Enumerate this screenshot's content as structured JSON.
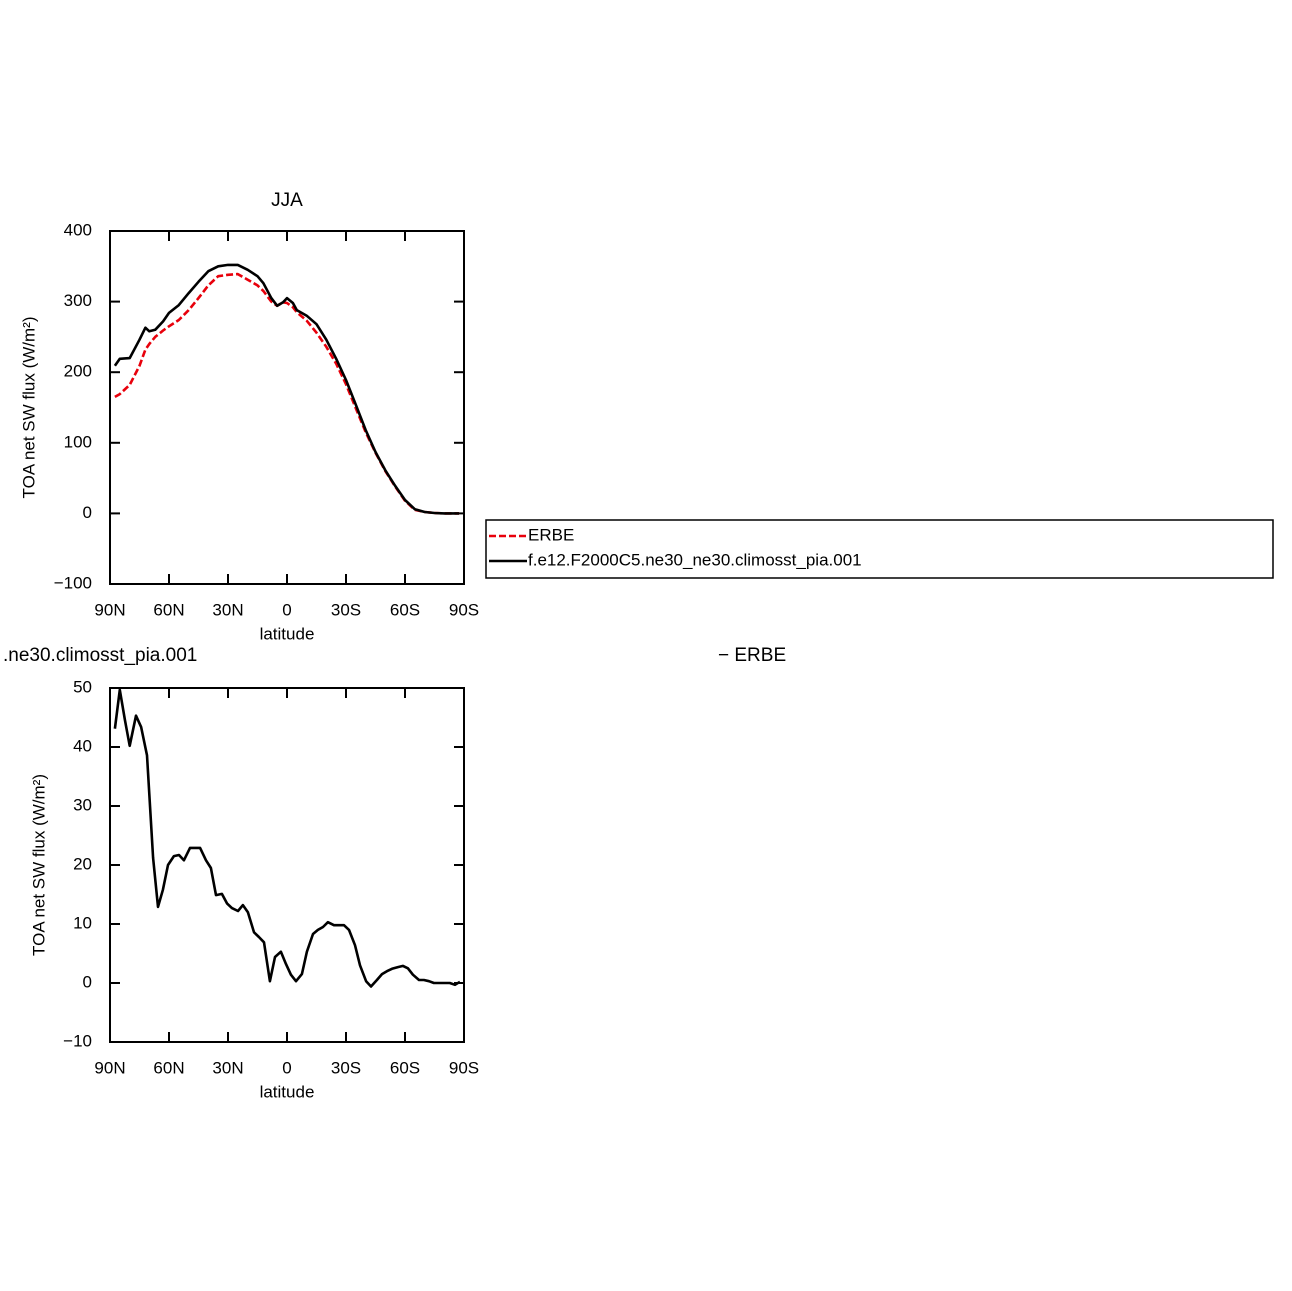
{
  "chart_data": [
    {
      "type": "line",
      "title": "JJA",
      "xlabel": "latitude",
      "ylabel": "TOA net SW flux (W/m²)",
      "x": [
        87.5,
        85,
        80,
        75,
        72,
        70,
        67,
        63,
        60,
        55,
        50,
        45,
        40,
        35,
        30,
        25,
        20,
        15,
        12,
        8,
        5,
        2,
        0,
        -3,
        -5,
        -10,
        -15,
        -20,
        -25,
        -30,
        -35,
        -40,
        -45,
        -50,
        -55,
        -60,
        -65,
        -70,
        -75,
        -80,
        -85,
        -87.5
      ],
      "series": [
        {
          "name": "ERBE",
          "color": "#e8000b",
          "dash": true,
          "values": [
            165,
            169,
            182,
            209,
            232,
            240,
            250,
            259,
            265,
            274,
            288,
            305,
            323,
            336,
            338,
            339,
            331,
            323,
            315,
            300,
            294,
            299,
            298,
            292,
            285,
            273,
            256,
            236,
            212,
            183,
            149,
            115,
            86,
            60,
            38,
            18,
            5,
            2,
            0.5,
            0,
            0,
            0
          ]
        },
        {
          "name": "f.e12.F2000C5.ne30_ne30.climosst_pia.001",
          "color": "#000000",
          "dash": false,
          "values": [
            209,
            219,
            220,
            246,
            263,
            258,
            260,
            272,
            284,
            295,
            312,
            328,
            343,
            350,
            352,
            352,
            345,
            336,
            326,
            305,
            294,
            299,
            305,
            298,
            288,
            280,
            268,
            246,
            219,
            189,
            154,
            118,
            87,
            61,
            39,
            19,
            6,
            2,
            0.5,
            0,
            0,
            0
          ]
        }
      ],
      "xlim": [
        90,
        -90
      ],
      "xticks": [
        {
          "value": 90,
          "label": "90N"
        },
        {
          "value": 60,
          "label": "60N"
        },
        {
          "value": 30,
          "label": "30N"
        },
        0,
        {
          "value": -30,
          "label": "30S"
        },
        {
          "value": -60,
          "label": "60S"
        },
        {
          "value": -90,
          "label": "90S"
        }
      ],
      "ylim": [
        -100,
        400
      ],
      "yticks": [
        {
          "value": -100,
          "label": "−100"
        },
        0,
        100,
        200,
        300,
        400
      ]
    },
    {
      "type": "line",
      "left_string": ".ne30.climosst_pia.001",
      "right_string": "− ERBE",
      "xlabel": "latitude",
      "ylabel": "TOA net SW flux (W/m²)",
      "x": [
        87.5,
        85,
        82.4,
        80,
        76.8,
        74.2,
        71.2,
        68.1,
        65.6,
        63.1,
        60.5,
        57.5,
        54.9,
        52.4,
        49.3,
        46.7,
        44.2,
        41.2,
        38.7,
        36.1,
        33.1,
        30.5,
        28,
        24.9,
        22.4,
        19.9,
        16.8,
        14.3,
        11.7,
        8.7,
        6.1,
        3.1,
        0.5,
        -2,
        -4.6,
        -7.6,
        -10.1,
        -13.2,
        -15.7,
        -18.3,
        -20.8,
        -23.9,
        -26.4,
        -29,
        -31.5,
        -34.6,
        -37.1,
        -40.2,
        -42.7,
        -45.7,
        -48.3,
        -50.8,
        -53.4,
        -56.4,
        -59,
        -61.5,
        -64,
        -67.1,
        -69.6,
        -72.2,
        -74.7,
        -77.8,
        -80.3,
        -82.8,
        -85.4,
        -87.9
      ],
      "series": [
        {
          "color": "#000000",
          "dash": false,
          "values": [
            43.1,
            49.7,
            44.6,
            40.2,
            45.3,
            43.4,
            38.6,
            21.2,
            12.9,
            15.8,
            20,
            21.5,
            21.7,
            20.8,
            22.9,
            22.9,
            22.9,
            20.8,
            19.5,
            14.9,
            15.1,
            13.5,
            12.7,
            12.2,
            13.2,
            12,
            8.6,
            7.8,
            6.9,
            0.3,
            4.4,
            5.3,
            3.2,
            1.4,
            0.3,
            1.5,
            5.3,
            8.3,
            9,
            9.5,
            10.3,
            9.8,
            9.8,
            9.8,
            9,
            6.4,
            3,
            0.3,
            -0.6,
            0.5,
            1.5,
            2,
            2.4,
            2.7,
            2.9,
            2.5,
            1.4,
            0.5,
            0.5,
            0.3,
            0,
            0,
            0,
            0,
            -0.3,
            0.2
          ]
        }
      ],
      "xlim": [
        90,
        -90
      ],
      "xticks": [
        {
          "value": 90,
          "label": "90N"
        },
        {
          "value": 60,
          "label": "60N"
        },
        {
          "value": 30,
          "label": "30N"
        },
        0,
        {
          "value": -30,
          "label": "30S"
        },
        {
          "value": -60,
          "label": "60S"
        },
        {
          "value": -90,
          "label": "90S"
        }
      ],
      "ylim": [
        -10,
        50
      ],
      "yticks": [
        {
          "value": -10,
          "label": "−10"
        },
        0,
        10,
        20,
        30,
        40,
        50
      ]
    }
  ]
}
